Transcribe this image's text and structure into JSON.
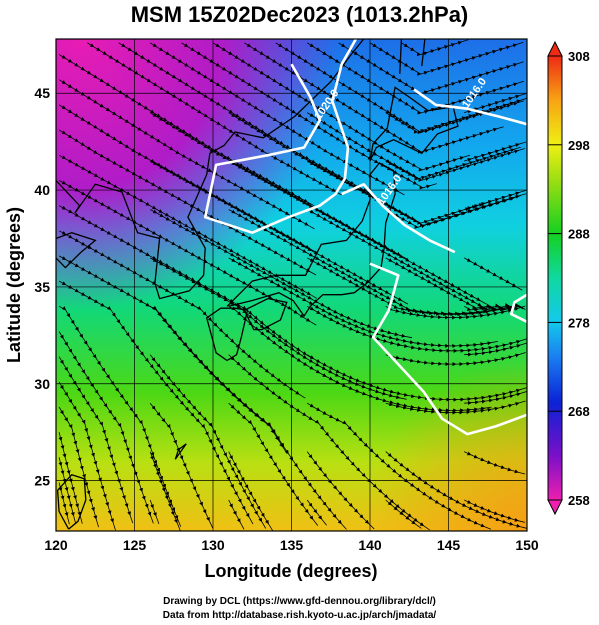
{
  "title": "MSM 15Z02Dec2023 (1013.2hPa)",
  "map": {
    "xlabel": "Longitude (degrees)",
    "ylabel": "Latitude  (degrees)",
    "lon_range": [
      120,
      150
    ],
    "lat_range": [
      22.4,
      47.8
    ],
    "lon_ticks": [
      "120",
      "125",
      "130",
      "135",
      "140",
      "145",
      "150"
    ],
    "lat_ticks": [
      "25",
      "30",
      "35",
      "40",
      "45"
    ],
    "contours": [
      {
        "label": "1020.0",
        "points": [
          [
            135,
            46.5
          ],
          [
            136.2,
            44.8
          ],
          [
            136.8,
            43.6
          ],
          [
            135.8,
            42.2
          ],
          [
            133.5,
            41.8
          ],
          [
            130.2,
            41.3
          ],
          [
            129.5,
            38.6
          ],
          [
            132.5,
            37.8
          ],
          [
            134.8,
            38.6
          ],
          [
            136.8,
            39.2
          ],
          [
            137.8,
            39.8
          ],
          [
            138.4,
            40.6
          ],
          [
            138.6,
            42.2
          ],
          [
            137.6,
            44.6
          ],
          [
            138.2,
            46.5
          ],
          [
            139.1,
            47.8
          ]
        ]
      },
      {
        "label": "1016.0",
        "points": [
          [
            142.8,
            45.2
          ],
          [
            144.2,
            44.4
          ],
          [
            146.2,
            44.2
          ],
          [
            148.2,
            43.8
          ],
          [
            150,
            43.4
          ]
        ]
      },
      {
        "label": "1016.0",
        "points": [
          [
            138.2,
            39.8
          ],
          [
            139.6,
            40.3
          ],
          [
            140.8,
            39.2
          ],
          [
            142.2,
            38.2
          ],
          [
            143.8,
            37.4
          ],
          [
            145.4,
            36.8
          ]
        ]
      },
      {
        "label": "",
        "points": [
          [
            140,
            36.2
          ],
          [
            141.8,
            35.6
          ],
          [
            141.2,
            33.8
          ],
          [
            140.2,
            32.4
          ],
          [
            141.8,
            31.0
          ],
          [
            143.4,
            29.6
          ],
          [
            144.6,
            28.2
          ],
          [
            146.2,
            27.4
          ],
          [
            148,
            27.8
          ],
          [
            150,
            28.4
          ]
        ]
      },
      {
        "label": "",
        "points": [
          [
            150,
            33.2
          ],
          [
            149.0,
            33.6
          ],
          [
            149.2,
            34.2
          ],
          [
            150,
            34.6
          ]
        ]
      }
    ],
    "colorbar": {
      "ticks": [
        "308",
        "298",
        "288",
        "278",
        "268",
        "258"
      ],
      "min": 258,
      "max": 308
    }
  },
  "credits": {
    "line1": "Drawing by DCL (https://www.gfd-dennou.org/library/dcl/)",
    "line2": "Data from http://database.rish.kyoto-u.ac.jp/arch/jmadata/"
  },
  "colors": {
    "land_border": "#000000",
    "contour": "#ffffff"
  }
}
